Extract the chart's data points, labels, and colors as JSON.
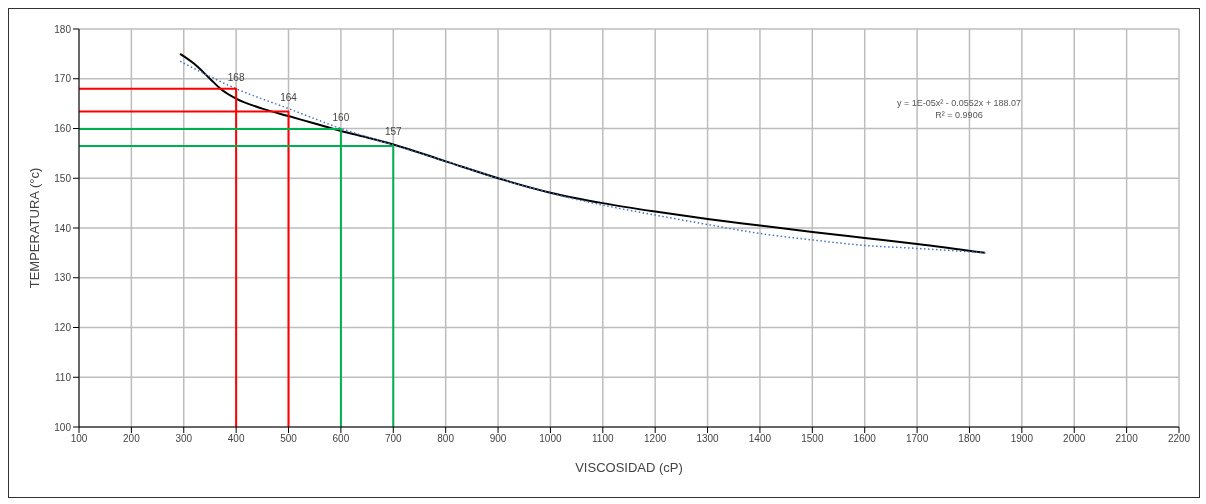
{
  "chart_data": {
    "type": "line",
    "xlabel": "VISCOSIDAD (cP)",
    "ylabel": "TEMPERATURA (°c)",
    "xlim": [
      100,
      2200
    ],
    "xticks": [
      100,
      200,
      300,
      400,
      500,
      600,
      700,
      800,
      900,
      1000,
      1100,
      1200,
      1300,
      1400,
      1500,
      1600,
      1700,
      1800,
      1900,
      2000,
      2100,
      2200
    ],
    "ylim": [
      100,
      180
    ],
    "yticks": [
      100,
      110,
      120,
      130,
      140,
      150,
      160,
      170,
      180
    ],
    "grid": true,
    "marker": "none",
    "series": [
      {
        "color": "#000000",
        "line_style": "solid",
        "x": [
          293,
          320,
          350,
          370,
          400,
          450,
          500,
          550,
          600,
          650,
          700,
          800,
          900,
          1000,
          1100,
          1200,
          1300,
          1400,
          1500,
          1600,
          1700,
          1830
        ],
        "values": [
          175,
          173,
          170,
          168,
          166,
          164,
          162.5,
          161,
          159.5,
          158.2,
          156.8,
          153.4,
          150,
          147.1,
          145,
          143.3,
          141.8,
          140.5,
          139.2,
          138,
          136.8,
          135
        ]
      },
      {
        "color": "#4472c4",
        "line_style": "dotted",
        "x": [
          293,
          400,
          500,
          600,
          700,
          800,
          900,
          1000,
          1100,
          1200,
          1300,
          1400,
          1500,
          1600,
          1700,
          1830
        ],
        "values": [
          173.5,
          168,
          164,
          160,
          156.7,
          153.4,
          150,
          147,
          144.6,
          142.6,
          140.7,
          138.9,
          137.6,
          136.5,
          135.9,
          135
        ]
      },
      {
        "color": "#ff0000",
        "line_style": "solid",
        "x": [
          100,
          400,
          400
        ],
        "values": [
          168,
          168,
          100
        ]
      },
      {
        "color": "#ff0000",
        "line_style": "solid",
        "x": [
          100,
          500,
          500
        ],
        "values": [
          163.4,
          163.4,
          100
        ]
      },
      {
        "color": "#00b050",
        "line_style": "solid",
        "x": [
          100,
          600,
          600
        ],
        "values": [
          159.9,
          159.9,
          100
        ]
      },
      {
        "color": "#00b050",
        "line_style": "solid",
        "x": [
          100,
          700,
          700
        ],
        "values": [
          156.5,
          156.5,
          100
        ]
      }
    ],
    "annotations": [
      {
        "text": "168",
        "x": 400,
        "y": 168
      },
      {
        "text": "164",
        "x": 500,
        "y": 164
      },
      {
        "text": "160",
        "x": 600,
        "y": 160
      },
      {
        "text": "157",
        "x": 700,
        "y": 157
      },
      "y = 1E-05x² - 0.0552x + 188.07",
      "R² = 0.9906"
    ]
  }
}
